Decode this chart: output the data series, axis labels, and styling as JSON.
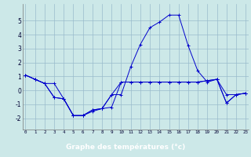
{
  "x": [
    0,
    1,
    2,
    3,
    4,
    5,
    6,
    7,
    8,
    9,
    10,
    11,
    12,
    13,
    14,
    15,
    16,
    17,
    18,
    19,
    20,
    21,
    22,
    23
  ],
  "line1": [
    1.1,
    0.8,
    0.5,
    0.5,
    -0.6,
    -1.8,
    -1.8,
    -1.5,
    -1.3,
    -1.2,
    0.6,
    0.6,
    0.6,
    0.6,
    0.6,
    0.6,
    0.6,
    0.6,
    0.6,
    0.7,
    0.8,
    -0.3,
    -0.3,
    -0.2
  ],
  "line2": [
    1.1,
    0.8,
    0.5,
    -0.5,
    -0.6,
    -1.8,
    -1.8,
    -1.4,
    -1.3,
    -0.3,
    -0.3,
    1.7,
    3.3,
    4.5,
    4.9,
    5.4,
    5.4,
    3.2,
    1.4,
    0.6,
    0.8,
    -0.9,
    -0.3,
    -0.2
  ],
  "line3": [
    1.1,
    0.8,
    0.5,
    -0.5,
    -0.6,
    -1.8,
    -1.8,
    -1.4,
    -1.3,
    -0.3,
    0.6,
    0.6,
    0.6,
    0.6,
    0.6,
    0.6,
    0.6,
    0.6,
    0.6,
    0.7,
    0.8,
    -0.9,
    -0.3,
    -0.2
  ],
  "background_color": "#cce8e8",
  "line_color": "#0000cc",
  "grid_color": "#99bbcc",
  "ylabel_values": [
    -2,
    -1,
    0,
    1,
    2,
    3,
    4,
    5
  ],
  "xlabel": "Graphe des températures (°c)",
  "ylim": [
    -2.8,
    6.2
  ],
  "xlim": [
    -0.3,
    23.3
  ],
  "bottom_bar_color": "#2244aa",
  "bottom_bar_text": "Graphe des températures (°c)"
}
